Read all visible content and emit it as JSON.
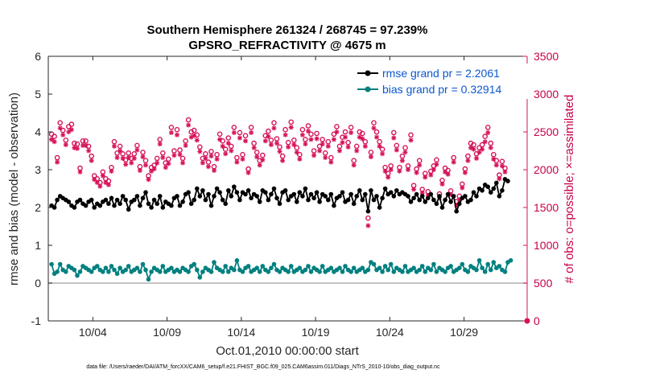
{
  "chart_data": {
    "type": "line",
    "title": "Southern Hemisphere 261324 / 268745 = 97.239%",
    "subtitle": "GPSRO_REFRACTIVITY @ 4675 m",
    "xlabel": "Oct.01,2010 00:00:00 start",
    "ylabel": "rmse and bias (model - observation)",
    "ylabel_right": "# of obs: o=possible; ×=assimilated",
    "footnote": "data file: /Users/raeder/DAI/ATM_forcXX/CAM6_setup/f.e21.FHIST_BGC.f09_025.CAM6assim.011/Diags_NTrS_2010-10/obs_diag_output.nc",
    "x_tick_labels": [
      "10/04",
      "10/09",
      "10/14",
      "10/19",
      "10/24",
      "10/29"
    ],
    "x_tick_days": [
      4,
      9,
      14,
      19,
      24,
      29
    ],
    "xlim_days": [
      1.0,
      33.25
    ],
    "ylim": [
      -1,
      6
    ],
    "y_ticks": [
      -1,
      0,
      1,
      2,
      3,
      4,
      5,
      6
    ],
    "ylim_right": [
      0,
      3500
    ],
    "y_ticks_right": [
      0,
      500,
      1000,
      1500,
      2000,
      2500,
      3000,
      3500
    ],
    "legend_position": "top-right",
    "grid": false,
    "colors": {
      "rmse": "#000000",
      "bias": "#00807f",
      "obs": "#d6135a",
      "zero_line": "#b0b0b0"
    },
    "series": [
      {
        "name": "rmse grand pr = 2.2061",
        "axis": "left",
        "values": [
          2.05,
          2.0,
          2.2,
          2.3,
          2.25,
          2.2,
          2.15,
          2.05,
          2.0,
          2.15,
          2.2,
          2.1,
          2.05,
          2.15,
          2.2,
          2.0,
          2.1,
          2.05,
          2.15,
          2.2,
          2.1,
          2.25,
          2.05,
          2.2,
          2.1,
          2.3,
          2.2,
          1.95,
          2.15,
          2.2,
          2.3,
          2.05,
          2.25,
          2.4,
          2.1,
          2.0,
          2.2,
          2.1,
          2.3,
          2.0,
          2.15,
          2.1,
          2.05,
          2.25,
          2.3,
          2.05,
          2.15,
          2.35,
          2.4,
          2.1,
          2.2,
          2.5,
          2.3,
          2.45,
          2.2,
          2.35,
          2.05,
          2.3,
          2.5,
          2.4,
          2.2,
          2.1,
          2.45,
          2.3,
          2.55,
          2.4,
          2.2,
          2.4,
          2.35,
          2.45,
          2.25,
          2.35,
          2.3,
          2.15,
          2.45,
          2.4,
          2.2,
          2.35,
          2.5,
          2.25,
          2.1,
          2.4,
          2.45,
          2.2,
          2.3,
          2.35,
          2.15,
          2.4,
          2.3,
          2.5,
          2.2,
          2.35,
          2.25,
          2.4,
          2.15,
          2.35,
          2.3,
          2.2,
          2.35,
          2.05,
          2.25,
          2.3,
          2.4,
          2.15,
          2.2,
          2.35,
          2.1,
          2.3,
          2.45,
          2.2,
          2.35,
          1.9,
          2.45,
          2.2,
          2.3,
          2.0,
          2.25,
          2.5,
          2.35,
          2.4,
          2.3,
          2.45,
          2.35,
          2.4,
          2.35,
          2.3,
          2.15,
          2.25,
          2.35,
          2.2,
          2.3,
          2.15,
          2.25,
          2.35,
          2.2,
          2.1,
          2.3,
          2.0,
          2.2,
          2.35,
          2.15,
          2.3,
          1.9,
          2.1,
          2.25,
          2.3,
          2.15,
          2.2,
          2.4,
          2.3,
          2.5,
          2.45,
          2.6,
          2.55,
          2.4,
          2.5,
          2.65,
          2.3,
          2.45,
          2.75,
          2.7
        ]
      },
      {
        "name": "bias grand pr = 0.32914",
        "axis": "left",
        "values": [
          0.5,
          0.25,
          0.3,
          0.5,
          0.35,
          0.3,
          0.45,
          0.4,
          0.35,
          0.2,
          0.3,
          0.45,
          0.4,
          0.35,
          0.3,
          0.4,
          0.45,
          0.35,
          0.3,
          0.4,
          0.3,
          0.45,
          0.35,
          0.25,
          0.4,
          0.3,
          0.35,
          0.45,
          0.3,
          0.35,
          0.4,
          0.3,
          0.5,
          0.35,
          0.1,
          0.3,
          0.4,
          0.35,
          0.3,
          0.45,
          0.3,
          0.35,
          0.4,
          0.3,
          0.35,
          0.3,
          0.4,
          0.35,
          0.3,
          0.45,
          0.5,
          0.35,
          0.15,
          0.3,
          0.4,
          0.35,
          0.3,
          0.55,
          0.4,
          0.35,
          0.3,
          0.45,
          0.3,
          0.4,
          0.35,
          0.6,
          0.35,
          0.3,
          0.4,
          0.45,
          0.3,
          0.35,
          0.4,
          0.3,
          0.45,
          0.35,
          0.3,
          0.4,
          0.5,
          0.35,
          0.3,
          0.4,
          0.35,
          0.3,
          0.45,
          0.3,
          0.35,
          0.4,
          0.3,
          0.35,
          0.45,
          0.3,
          0.4,
          0.35,
          0.3,
          0.45,
          0.3,
          0.35,
          0.4,
          0.3,
          0.35,
          0.4,
          0.3,
          0.45,
          0.35,
          0.3,
          0.4,
          0.3,
          0.35,
          0.4,
          0.3,
          0.35,
          0.55,
          0.5,
          0.35,
          0.4,
          0.3,
          0.45,
          0.35,
          0.5,
          0.3,
          0.4,
          0.35,
          0.3,
          0.45,
          0.3,
          0.35,
          0.4,
          0.3,
          0.35,
          0.45,
          0.3,
          0.4,
          0.35,
          0.5,
          0.3,
          0.4,
          0.35,
          0.3,
          0.4,
          0.45,
          0.3,
          0.35,
          0.4,
          0.5,
          0.35,
          0.3,
          0.45,
          0.4,
          0.35,
          0.6,
          0.4,
          0.3,
          0.5,
          0.35,
          0.55,
          0.4,
          0.45,
          0.35,
          0.3,
          0.55,
          0.6
        ]
      },
      {
        "name": "possible",
        "axis": "right",
        "marker": "o",
        "values": [
          2470,
          2440,
          2160,
          2620,
          2520,
          2390,
          2570,
          2600,
          2350,
          2340,
          2020,
          2380,
          2380,
          2310,
          2180,
          1920,
          1880,
          1830,
          1970,
          1880,
          1850,
          2030,
          2370,
          2220,
          2310,
          2210,
          2130,
          2220,
          2150,
          2210,
          2320,
          2040,
          2230,
          2120,
          1920,
          2030,
          2060,
          2150,
          2400,
          2220,
          2090,
          2140,
          2560,
          2250,
          2530,
          2260,
          2150,
          2380,
          2660,
          2500,
          2520,
          2460,
          2300,
          2150,
          2210,
          2100,
          2240,
          2040,
          2200,
          2470,
          2380,
          2270,
          2420,
          2310,
          2560,
          2160,
          2490,
          2200,
          2450,
          2010,
          2560,
          2350,
          2230,
          2120,
          2190,
          2450,
          2510,
          2390,
          2620,
          2410,
          2300,
          2180,
          2530,
          2360,
          2630,
          2390,
          2290,
          2200,
          2530,
          2400,
          2580,
          2470,
          2250,
          2480,
          2310,
          2400,
          2220,
          2370,
          2160,
          2470,
          2570,
          2310,
          2430,
          2500,
          2360,
          2560,
          2120,
          2310,
          2500,
          2480,
          2370,
          1360,
          2230,
          2620,
          2500,
          2370,
          2270,
          2030,
          1950,
          2050,
          2490,
          2320,
          2030,
          2180,
          2290,
          2050,
          2460,
          1790,
          2010,
          2120,
          1740,
          1950,
          1710,
          1980,
          2050,
          2130,
          1680,
          1860,
          2020,
          1990,
          1720,
          2160,
          1580,
          1650,
          1810,
          2010,
          2180,
          2350,
          2330,
          2210,
          2290,
          2330,
          2440,
          2560,
          2350,
          2200,
          2120,
          1930,
          2110,
          2020
        ]
      },
      {
        "name": "assimilated",
        "axis": "right",
        "marker": "x",
        "values": [
          2400,
          2370,
          2100,
          2550,
          2460,
          2330,
          2500,
          2530,
          2290,
          2280,
          1970,
          2320,
          2320,
          2250,
          2120,
          1870,
          1830,
          1780,
          1920,
          1830,
          1800,
          1980,
          2310,
          2160,
          2250,
          2150,
          2070,
          2160,
          2090,
          2150,
          2260,
          1990,
          2170,
          2060,
          1870,
          1980,
          2010,
          2090,
          2340,
          2160,
          2030,
          2080,
          2490,
          2190,
          2460,
          2200,
          2090,
          2320,
          2590,
          2430,
          2450,
          2390,
          2240,
          2090,
          2150,
          2040,
          2180,
          1990,
          2140,
          2400,
          2310,
          2210,
          2350,
          2250,
          2490,
          2100,
          2420,
          2140,
          2380,
          1960,
          2490,
          2290,
          2170,
          2060,
          2130,
          2380,
          2440,
          2330,
          2550,
          2350,
          2240,
          2120,
          2460,
          2300,
          2560,
          2330,
          2230,
          2140,
          2460,
          2340,
          2510,
          2400,
          2190,
          2410,
          2250,
          2340,
          2160,
          2310,
          2100,
          2400,
          2500,
          2250,
          2360,
          2430,
          2300,
          2490,
          2060,
          2250,
          2430,
          2410,
          2310,
          1260,
          2170,
          2550,
          2430,
          2310,
          2210,
          1980,
          1900,
          2000,
          2420,
          2260,
          1980,
          2120,
          2230,
          2000,
          2390,
          1740,
          1960,
          2060,
          1690,
          1900,
          1660,
          1930,
          2000,
          2070,
          1630,
          1810,
          1970,
          1940,
          1670,
          2100,
          1530,
          1600,
          1760,
          1960,
          2120,
          2290,
          2270,
          2150,
          2230,
          2270,
          2370,
          2490,
          2290,
          2140,
          2060,
          1880,
          2050,
          1970
        ]
      }
    ],
    "outlier_marker": {
      "x_days": 33.25,
      "right_value": 0
    }
  }
}
